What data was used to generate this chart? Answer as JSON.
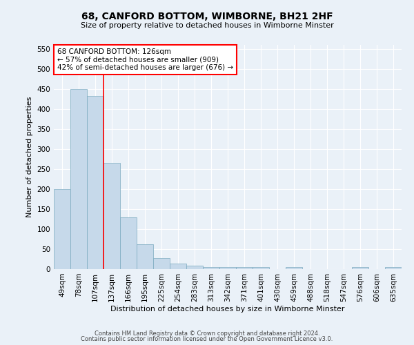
{
  "title": "68, CANFORD BOTTOM, WIMBORNE, BH21 2HF",
  "subtitle": "Size of property relative to detached houses in Wimborne Minster",
  "xlabel": "Distribution of detached houses by size in Wimborne Minster",
  "ylabel": "Number of detached properties",
  "footer_line1": "Contains HM Land Registry data © Crown copyright and database right 2024.",
  "footer_line2": "Contains public sector information licensed under the Open Government Licence v3.0.",
  "annotation_title": "68 CANFORD BOTTOM: 126sqm",
  "annotation_line1": "← 57% of detached houses are smaller (909)",
  "annotation_line2": "42% of semi-detached houses are larger (676) →",
  "bar_labels": [
    "49sqm",
    "78sqm",
    "107sqm",
    "137sqm",
    "166sqm",
    "195sqm",
    "225sqm",
    "254sqm",
    "283sqm",
    "313sqm",
    "342sqm",
    "371sqm",
    "401sqm",
    "430sqm",
    "459sqm",
    "488sqm",
    "518sqm",
    "547sqm",
    "576sqm",
    "606sqm",
    "635sqm"
  ],
  "bar_values": [
    200,
    450,
    433,
    265,
    130,
    62,
    28,
    14,
    8,
    5,
    5,
    5,
    5,
    0,
    5,
    0,
    0,
    0,
    5,
    0,
    5
  ],
  "bar_color": "#c6d9ea",
  "bar_edge_color": "#7aaabf",
  "property_line_color": "red",
  "ylim": [
    0,
    560
  ],
  "yticks": [
    0,
    50,
    100,
    150,
    200,
    250,
    300,
    350,
    400,
    450,
    500,
    550
  ],
  "background_color": "#eaf1f8",
  "grid_color": "#ffffff",
  "annotation_box_color": "#ffffff",
  "annotation_box_edge": "red",
  "title_fontsize": 10,
  "subtitle_fontsize": 8,
  "ylabel_fontsize": 8,
  "xlabel_fontsize": 8,
  "tick_fontsize": 7.5,
  "footer_fontsize": 6
}
